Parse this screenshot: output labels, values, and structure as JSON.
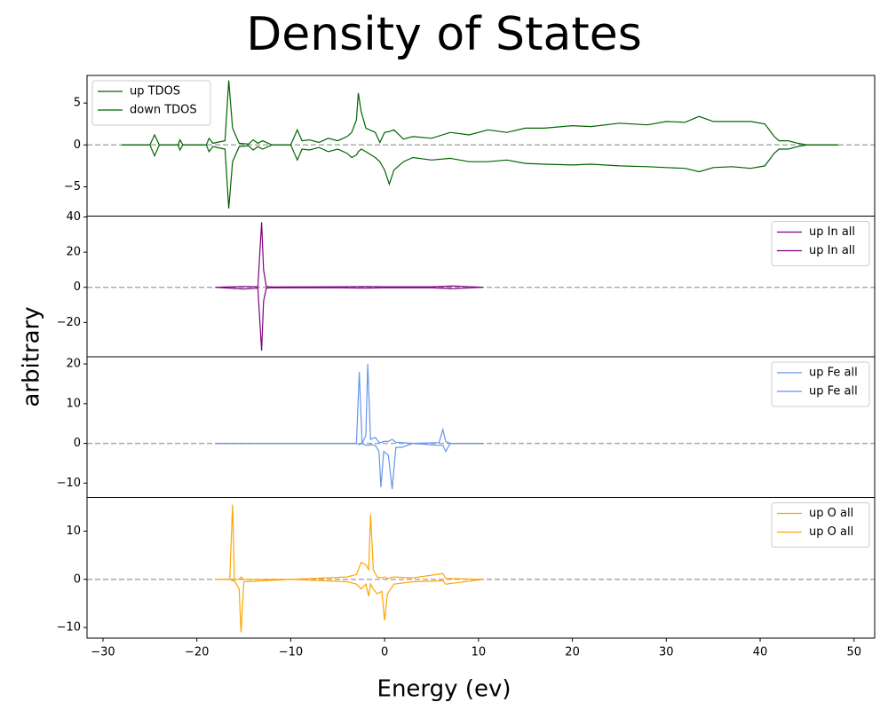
{
  "figure": {
    "title": "Density of States",
    "xlabel": "Energy (ev)",
    "ylabel": "arbitrary"
  },
  "chart_data": [
    {
      "type": "line",
      "legend": "upper left",
      "hline": 0,
      "xlim": [
        -31.7,
        52.2
      ],
      "ylim": [
        -8.5,
        8.3
      ],
      "yticks": [
        {
          "value": -5,
          "label": "−5"
        },
        0,
        5
      ],
      "x": [
        -28,
        -25,
        -24.5,
        -24,
        -22,
        -21.8,
        -21.5,
        -19,
        -18.7,
        -18.3,
        -17,
        -16.6,
        -16.2,
        -15.5,
        -14.5,
        -14,
        -13.5,
        -13,
        -12,
        -10,
        -9.3,
        -8.8,
        -8,
        -7,
        -6,
        -5,
        -4,
        -3.5,
        -3,
        -2.8,
        -2.5,
        -2,
        -1,
        -0.5,
        0,
        0.5,
        1,
        2,
        3,
        5,
        7,
        9,
        11,
        13,
        15,
        17,
        20,
        22,
        25,
        28,
        30,
        32,
        33.5,
        35,
        37,
        39,
        40.5,
        41.5,
        42,
        43,
        44,
        45,
        48.3
      ],
      "series": [
        {
          "name": "up TDOS",
          "color": "#006400",
          "values": [
            0,
            0,
            1.2,
            0,
            0,
            0.6,
            0,
            0,
            0.8,
            0.2,
            0.5,
            7.7,
            2,
            0.2,
            0.1,
            0.6,
            0.2,
            0.5,
            0,
            0,
            1.8,
            0.5,
            0.6,
            0.3,
            0.8,
            0.5,
            1,
            1.5,
            3,
            6.2,
            4,
            2,
            1.5,
            0.3,
            1.5,
            1.6,
            1.8,
            0.7,
            1,
            0.8,
            1.5,
            1.2,
            1.8,
            1.5,
            2,
            2,
            2.3,
            2.2,
            2.6,
            2.4,
            2.8,
            2.7,
            3.4,
            2.8,
            2.8,
            2.8,
            2.5,
            1,
            0.5,
            0.5,
            0.2,
            0,
            0
          ]
        },
        {
          "name": "down TDOS",
          "color": "#006400",
          "values": [
            0,
            0,
            -1.3,
            0,
            0,
            -0.6,
            0,
            0,
            -0.8,
            -0.2,
            -0.5,
            -7.6,
            -2,
            -0.2,
            -0.1,
            -0.6,
            -0.2,
            -0.5,
            0,
            0,
            -1.8,
            -0.5,
            -0.6,
            -0.3,
            -0.8,
            -0.5,
            -1,
            -1.5,
            -1.2,
            -0.8,
            -0.5,
            -0.8,
            -1.5,
            -2,
            -3,
            -4.7,
            -3,
            -2,
            -1.5,
            -1.8,
            -1.6,
            -2,
            -2,
            -1.8,
            -2.2,
            -2.3,
            -2.4,
            -2.3,
            -2.5,
            -2.6,
            -2.7,
            -2.8,
            -3.2,
            -2.7,
            -2.6,
            -2.8,
            -2.5,
            -1,
            -0.5,
            -0.5,
            -0.2,
            0,
            0
          ]
        }
      ]
    },
    {
      "type": "line",
      "legend": "upper right",
      "hline": 0,
      "xlim": [
        -31.7,
        52.2
      ],
      "ylim": [
        -39.5,
        40.5
      ],
      "yticks": [
        {
          "value": -20,
          "label": "−20"
        },
        0,
        20,
        40
      ],
      "x": [
        -18,
        -15,
        -13.5,
        -13.1,
        -12.9,
        -12.6,
        -12,
        -5,
        -2,
        0,
        5,
        7.3,
        10.5
      ],
      "series": [
        {
          "name": "up In all",
          "color": "#800080",
          "values": [
            0,
            0.5,
            0.3,
            37,
            10,
            0.5,
            0.2,
            0.3,
            0.5,
            0.3,
            0.3,
            0.8,
            0
          ]
        },
        {
          "name": "up In all",
          "color": "#800080",
          "values": [
            0,
            -1,
            -0.5,
            -36,
            -8,
            -0.5,
            -0.2,
            -0.3,
            -0.5,
            -0.3,
            -0.3,
            -0.8,
            0
          ]
        }
      ]
    },
    {
      "type": "line",
      "legend": "upper right",
      "hline": 0,
      "xlim": [
        -31.7,
        52.2
      ],
      "ylim": [
        -13.6,
        21.8
      ],
      "yticks": [
        {
          "value": -10,
          "label": "−10"
        },
        0,
        10,
        20
      ],
      "x": [
        -18,
        -5,
        -3,
        -2.7,
        -2.4,
        -2,
        -1.8,
        -1.5,
        -1,
        -0.6,
        -0.4,
        -0.1,
        0.4,
        0.8,
        1.2,
        1.8,
        3,
        5.8,
        6.2,
        6.5,
        7,
        10.5
      ],
      "series": [
        {
          "name": "up Fe all",
          "color": "#6495ed",
          "values": [
            0,
            0,
            0,
            18,
            0,
            2,
            20,
            1,
            1.5,
            0.3,
            0.2,
            0.5,
            0.5,
            1,
            0.3,
            0.2,
            0,
            0.2,
            3.5,
            0.5,
            0,
            0
          ]
        },
        {
          "name": "up Fe all",
          "color": "#6495ed",
          "values": [
            0,
            0,
            0,
            -0.3,
            0,
            -0.5,
            -0.5,
            -0.3,
            -0.5,
            -2,
            -11,
            -2,
            -3,
            -11.5,
            -1,
            -1,
            0,
            -0.5,
            -0.5,
            -2,
            0,
            0
          ]
        }
      ]
    },
    {
      "type": "line",
      "legend": "upper right",
      "hline": 0,
      "xlim": [
        -31.7,
        52.2
      ],
      "ylim": [
        -12.2,
        17
      ],
      "yticks": [
        {
          "value": -10,
          "label": "−10"
        },
        0,
        10
      ],
      "xticks": [
        {
          "value": -30,
          "label": "−30"
        },
        {
          "value": -20,
          "label": "−20"
        },
        {
          "value": -10,
          "label": "−10"
        },
        0,
        10,
        20,
        30,
        40,
        50
      ],
      "x": [
        -18,
        -16.5,
        -16.2,
        -16,
        -15.5,
        -15.3,
        -15,
        -10,
        -4,
        -3,
        -2.5,
        -2,
        -1.7,
        -1.5,
        -1.2,
        -0.8,
        -0.3,
        0,
        0.3,
        1,
        3,
        6.2,
        6.5,
        10.5
      ],
      "series": [
        {
          "name": "up O all",
          "color": "#ffa500",
          "values": [
            0,
            0,
            15.5,
            0,
            0,
            0.5,
            0,
            0,
            0.5,
            1,
            3.5,
            3,
            2,
            13.5,
            2,
            0.5,
            0.3,
            0.5,
            0.2,
            0.5,
            0.3,
            1.2,
            0.2,
            0
          ]
        },
        {
          "name": "up O all",
          "color": "#ffa500",
          "values": [
            0,
            0,
            -0.3,
            -0.3,
            -2,
            -11,
            -0.5,
            0,
            -0.5,
            -1,
            -2,
            -1,
            -3.5,
            -1,
            -2,
            -3,
            -2.5,
            -8.5,
            -3,
            -1,
            -0.5,
            -0.3,
            -1,
            0
          ]
        }
      ]
    }
  ]
}
